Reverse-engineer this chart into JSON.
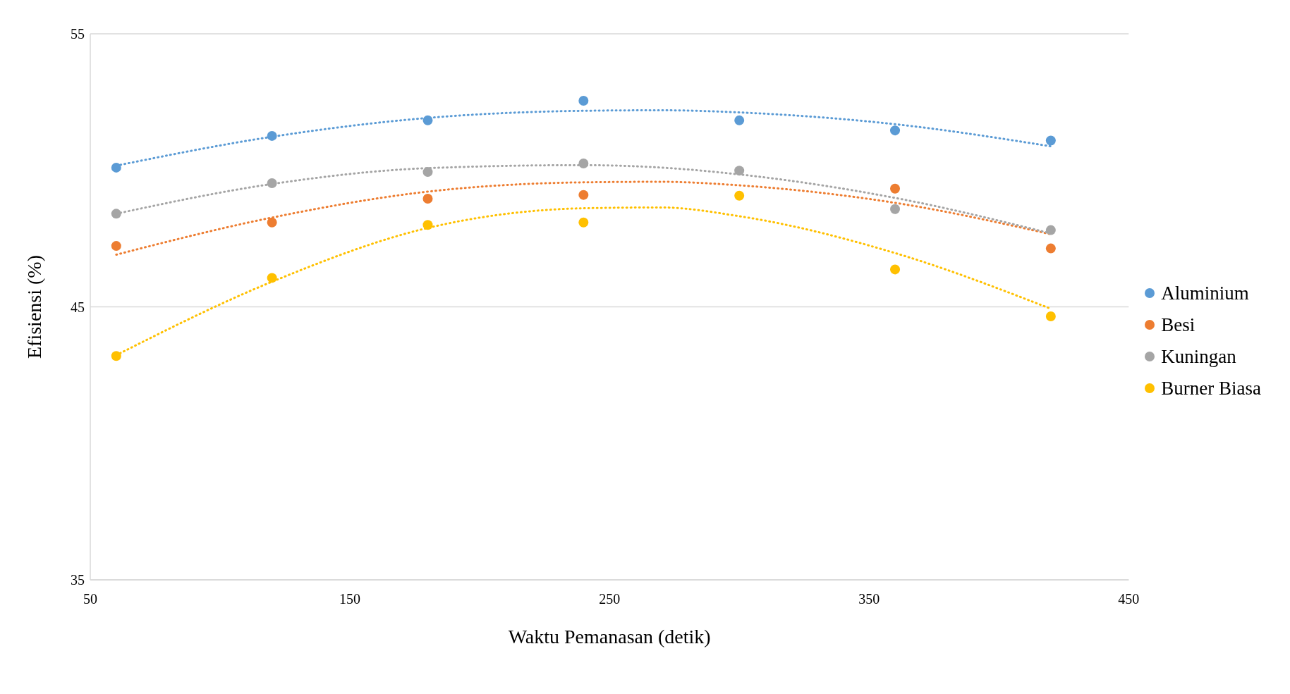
{
  "chart_data": {
    "type": "scatter",
    "xlabel": "Waktu Pemanasan (detik)",
    "ylabel": "Efisiensi (%)",
    "x": [
      60,
      120,
      180,
      240,
      300,
      360,
      420
    ],
    "xlim": [
      50,
      450
    ],
    "xticks": [
      50,
      150,
      250,
      350,
      450
    ],
    "ylim": [
      35,
      55
    ],
    "yticks": [
      35,
      45,
      55
    ],
    "grid": "y",
    "legend": "right",
    "marker": "circle",
    "series": [
      {
        "name": "Aluminium",
        "color": "#5b9bd5",
        "values": [
          50.1,
          51.26,
          51.83,
          52.55,
          51.83,
          51.46,
          51.09
        ]
      },
      {
        "name": "Besi",
        "color": "#ed7d31",
        "values": [
          47.23,
          48.09,
          48.96,
          49.1,
          null,
          49.33,
          47.14
        ]
      },
      {
        "name": "Kuningan",
        "color": "#a5a5a5",
        "values": [
          48.41,
          49.53,
          49.94,
          50.25,
          49.99,
          48.58,
          47.81
        ]
      },
      {
        "name": "Burner Biasa",
        "color": "#ffc000",
        "values": [
          43.2,
          46.06,
          48.0,
          48.09,
          49.07,
          46.37,
          44.65
        ]
      },
      {
        "type": "line",
        "color": "#5b9bd5",
        "line_style": "dotted",
        "marker": "none",
        "x": [
          60,
          120,
          180,
          240,
          270,
          300,
          360,
          420
        ],
        "values": [
          50.17,
          51.23,
          51.92,
          52.18,
          52.2,
          52.12,
          51.69,
          50.88
        ]
      },
      {
        "type": "line",
        "color": "#ed7d31",
        "line_style": "dotted",
        "marker": "none",
        "x": [
          60,
          120,
          180,
          240,
          270,
          300,
          360,
          420
        ],
        "values": [
          46.91,
          48.27,
          49.22,
          49.56,
          49.58,
          49.45,
          48.81,
          47.66
        ]
      },
      {
        "type": "line",
        "color": "#a5a5a5",
        "line_style": "dotted",
        "marker": "none",
        "x": [
          60,
          120,
          180,
          240,
          270,
          300,
          360,
          420
        ],
        "values": [
          48.41,
          49.5,
          50.08,
          50.19,
          50.1,
          49.85,
          48.99,
          47.69
        ]
      },
      {
        "type": "line",
        "color": "#ffc000",
        "line_style": "dotted",
        "marker": "none",
        "x": [
          60,
          120,
          180,
          240,
          270,
          300,
          360,
          420
        ],
        "values": [
          43.23,
          45.92,
          47.89,
          48.61,
          48.64,
          48.32,
          46.97,
          44.93
        ]
      }
    ]
  }
}
